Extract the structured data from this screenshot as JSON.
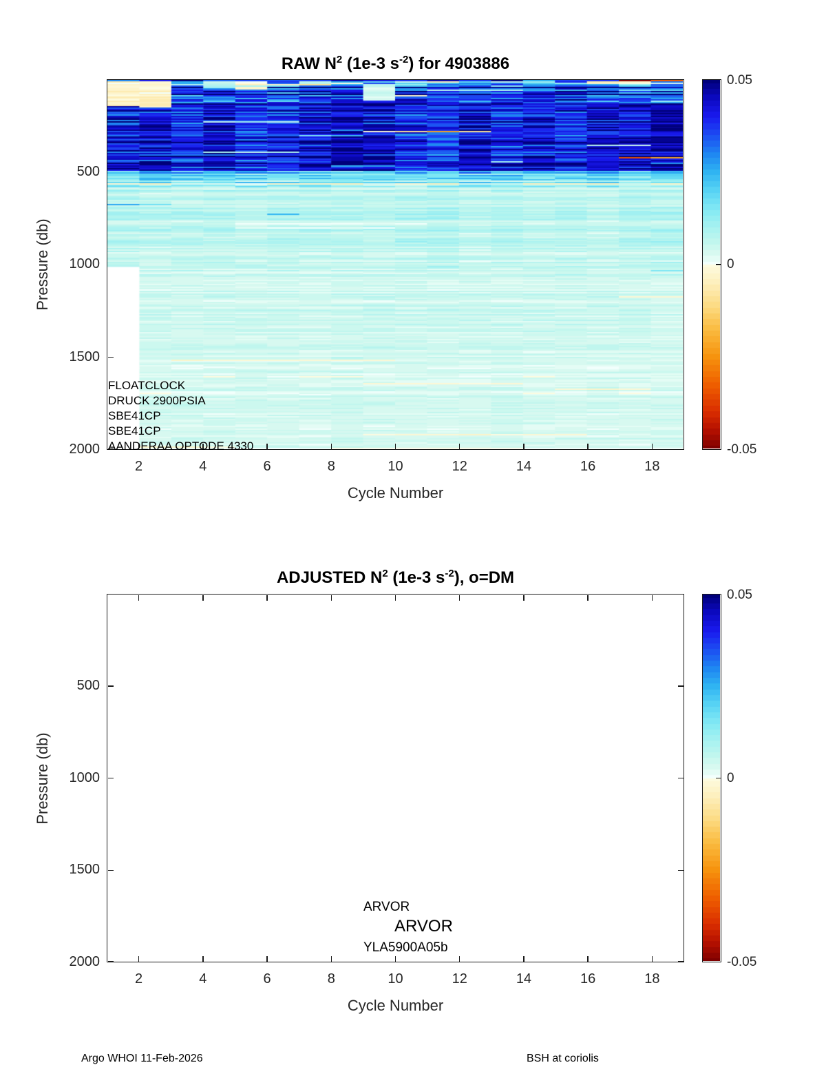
{
  "page": {
    "background": "#ffffff"
  },
  "top_plot": {
    "title": {
      "pre": "RAW N",
      "sup1": "2",
      "mid": " (1e-3 s",
      "sup2": "-2",
      "post": ") for 4903886"
    },
    "xlabel": "Cycle Number",
    "ylabel": "Pressure (db)",
    "annotations": [
      "FLOATCLOCK",
      "DRUCK 2900PSIA",
      "SBE41CP",
      "SBE41CP",
      "AANDERAA OPTODE 4330"
    ]
  },
  "bottom_plot": {
    "title": {
      "pre": "ADJUSTED N",
      "sup1": "2",
      "mid": " (1e-3 s",
      "sup2": "-2",
      "post": "), o=DM"
    },
    "xlabel": "Cycle Number",
    "ylabel": "Pressure (db)",
    "annotations": [
      "ARVOR",
      "ARVOR",
      "YLA5900A05b"
    ]
  },
  "footer": {
    "left": "Argo WHOI 11-Feb-2026",
    "right": "BSH at coriolis"
  },
  "colorbar": {
    "labels": [
      "0.05",
      "0",
      "-0.05"
    ],
    "max": 0.05,
    "mid": 0,
    "min": -0.05
  },
  "chart_data": [
    {
      "id": "raw",
      "type": "heatmap",
      "title_text": "RAW N^2 (1e-3 s^-2) for 4903886",
      "float_id": "4903886",
      "xlabel": "Cycle Number",
      "ylabel": "Pressure (db)",
      "xlim": [
        1,
        19
      ],
      "ylim": [
        0,
        2000
      ],
      "y_axis_reversed": true,
      "x_ticks": [
        2,
        4,
        6,
        8,
        10,
        12,
        14,
        16,
        18
      ],
      "y_ticks": [
        500,
        1000,
        1500,
        2000
      ],
      "clim": [
        -0.05,
        0.05
      ],
      "colorbar_tick_labels": [
        "0.05",
        "0",
        "-0.05"
      ],
      "n_profiles": 19,
      "missing": {
        "cycle": 1,
        "below_db": 1015
      },
      "sensor_annotations": [
        "FLOATCLOCK",
        "DRUCK 2900PSIA",
        "SBE41CP",
        "SBE41CP",
        "AANDERAA OPTODE 4330"
      ],
      "summary": "Buoyancy frequency N^2 (1e-3 s^-2) vs pressure for 19 cycles. Strong stratification (0.03-0.05, dark blue) between ~130 and ~500 db; pale khaki low/negative patches near the surface on cycles 1-2; weak values (~0.002-0.009, pale cyan) below ~600 db with occasional cream (slightly negative) layers below ~1400 db; cycle 1 profile has no data below ~1015 db.",
      "colormap": {
        "pos": [
          [
            0,
            "#f2fffc"
          ],
          [
            0.05,
            "#dcfaf1"
          ],
          [
            0.12,
            "#c2f6ee"
          ],
          [
            0.2,
            "#a8f2f0"
          ],
          [
            0.3,
            "#82e9f4"
          ],
          [
            0.4,
            "#58d4f4"
          ],
          [
            0.5,
            "#30b4f2"
          ],
          [
            0.6,
            "#1e86f2"
          ],
          [
            0.7,
            "#1c4ef2"
          ],
          [
            0.8,
            "#1a1aee"
          ],
          [
            0.9,
            "#0c0ac2"
          ],
          [
            1,
            "#00007a"
          ]
        ],
        "neg": [
          [
            0,
            "#fdfbe0"
          ],
          [
            0.1,
            "#fdefbd"
          ],
          [
            0.22,
            "#fcdc85"
          ],
          [
            0.35,
            "#fabc42"
          ],
          [
            0.5,
            "#f6930e"
          ],
          [
            0.65,
            "#ef5f00"
          ],
          [
            0.8,
            "#d92d00"
          ],
          [
            0.9,
            "#b31000"
          ],
          [
            1,
            "#7e0000"
          ]
        ],
        "levels": 32
      },
      "generation": {
        "seed": 911,
        "row_db": 7.435,
        "bands": [
          {
            "p": [
              0,
              10
            ],
            "base": 0.045,
            "spread": 0.01,
            "col_spread": 0.01,
            "events": [
              {
                "prob": 0.5,
                "value": -0.03,
                "vspread": 0.02,
                "min_cols": 1,
                "max_cols": 4
              }
            ]
          },
          {
            "p": [
              10,
              30
            ],
            "base": 0.03,
            "spread": 0.03,
            "col_spread": 0.02,
            "events": [
              {
                "prob": 0.25,
                "value": -0.006,
                "vspread": 0.004,
                "min_cols": 1,
                "max_cols": 3
              }
            ]
          },
          {
            "p": [
              30,
              130
            ],
            "base": 0.041,
            "base2": 0.044,
            "spread": 0.016,
            "col_spread": 0.012,
            "events": [
              {
                "prob": 0.12,
                "value": 0.008,
                "vspread": 0.006,
                "min_cols": 1,
                "max_cols": 3
              },
              {
                "prob": 0.05,
                "value": -0.004,
                "vspread": 0.003,
                "min_cols": 1,
                "max_cols": 2
              }
            ]
          },
          {
            "p": [
              130,
              490
            ],
            "base": 0.045,
            "base2": 0.042,
            "spread": 0.009,
            "col_spread": 0.008,
            "events": [
              {
                "prob": 0.11,
                "value": 0.02,
                "vspread": 0.01,
                "min_cols": 1,
                "max_cols": 5
              },
              {
                "prob": 0.05,
                "value": 0.008,
                "vspread": 0.004,
                "min_cols": 1,
                "max_cols": 3
              },
              {
                "prob": 0.025,
                "value": -0.02,
                "vspread": 0.02,
                "min_cols": 2,
                "max_cols": 7
              }
            ]
          },
          {
            "p": [
              490,
              580
            ],
            "base": 0.024,
            "base2": 0.009,
            "spread": 0.011,
            "col_spread": 0.006,
            "events": [
              {
                "prob": 0.15,
                "value": 0.03,
                "vspread": 0.01,
                "min_cols": 2,
                "max_cols": 6
              }
            ]
          },
          {
            "p": [
              580,
              1060
            ],
            "base": 0.0075,
            "base2": 0.0055,
            "spread": 0.0035,
            "col_spread": 0.002,
            "events": [
              {
                "prob": 0.07,
                "value": 0.02,
                "vspread": 0.008,
                "min_cols": 1,
                "max_cols": 4
              },
              {
                "prob": 0.03,
                "value": 0.0006,
                "vspread": 0.0006,
                "min_cols": 2,
                "max_cols": 6
              }
            ]
          },
          {
            "p": [
              1060,
              1450
            ],
            "base": 0.0042,
            "spread": 0.0025,
            "col_spread": 0.0015,
            "events": [
              {
                "prob": 0.04,
                "value": -0.0015,
                "vspread": 0.001,
                "min_cols": 2,
                "max_cols": 6
              },
              {
                "prob": 0.02,
                "value": 0.012,
                "vspread": 0.004,
                "min_cols": 1,
                "max_cols": 3
              }
            ]
          },
          {
            "p": [
              1450,
              2001
            ],
            "base": 0.0035,
            "base2": 0.003,
            "spread": 0.0022,
            "col_spread": 0.0015,
            "events": [
              {
                "prob": 0.07,
                "value": -0.002,
                "vspread": 0.0015,
                "min_cols": 2,
                "max_cols": 7
              },
              {
                "prob": 0.015,
                "value": 0.01,
                "vspread": 0.004,
                "min_cols": 1,
                "max_cols": 3
              }
            ]
          }
        ],
        "surface_patches": [
          {
            "col": 0,
            "p": [
              8,
              140
            ],
            "value": -0.003,
            "vspread": 0.004
          },
          {
            "col": 1,
            "p": [
              8,
              150
            ],
            "value": -0.0035,
            "vspread": 0.004
          },
          {
            "col": 3,
            "p": [
              10,
              40
            ],
            "value": 0.006,
            "vspread": 0.004
          },
          {
            "col": 4,
            "p": [
              10,
              55
            ],
            "value": -0.002,
            "vspread": 0.003
          },
          {
            "col": 8,
            "p": [
              25,
              115
            ],
            "value": 0.004,
            "vspread": 0.003
          },
          {
            "col": 10,
            "p": [
              6,
              18
            ],
            "value": -0.005,
            "vspread": 0.004
          },
          {
            "col": 15,
            "p": [
              6,
              20
            ],
            "value": -0.004,
            "vspread": 0.003
          },
          {
            "col": 16,
            "p": [
              6,
              22
            ],
            "value": -0.003,
            "vspread": 0.003
          }
        ]
      }
    },
    {
      "id": "adjusted",
      "type": "heatmap",
      "empty": true,
      "title_text": "ADJUSTED N^2 (1e-3 s^-2), o=DM",
      "xlabel": "Cycle Number",
      "ylabel": "Pressure (db)",
      "xlim": [
        1,
        19
      ],
      "ylim": [
        0,
        2000
      ],
      "y_axis_reversed": true,
      "x_ticks": [
        2,
        4,
        6,
        8,
        10,
        12,
        14,
        16,
        18
      ],
      "y_ticks": [
        500,
        1000,
        1500,
        2000
      ],
      "clim": [
        -0.05,
        0.05
      ],
      "colorbar_tick_labels": [
        "0.05",
        "0",
        "-0.05"
      ],
      "values": "none (no adjusted data plotted)",
      "model_annotations": [
        "ARVOR",
        "ARVOR",
        "YLA5900A05b"
      ]
    }
  ]
}
